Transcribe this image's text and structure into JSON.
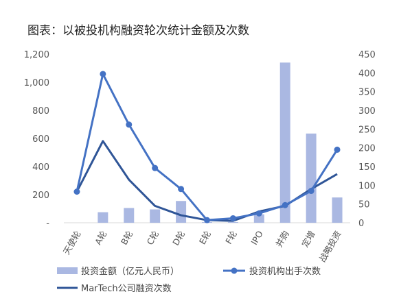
{
  "chart_data": {
    "type": "bar",
    "title": "图表：以被投机构融资轮次统计金额及次数",
    "categories": [
      "天使轮",
      "A轮",
      "B轮",
      "C轮",
      "D轮",
      "E轮",
      "F轮",
      "IPO",
      "并购",
      "定增",
      "战略投资"
    ],
    "y_left": {
      "ticks": [
        "-",
        "200",
        "400",
        "600",
        "800",
        "1,000",
        "1,200"
      ],
      "ylim": [
        0,
        1200
      ]
    },
    "y_right": {
      "ticks": [
        "0",
        "50",
        "100",
        "150",
        "200",
        "250",
        "300",
        "350",
        "400",
        "450"
      ],
      "ylim": [
        0,
        450
      ]
    },
    "series": [
      {
        "name": "投资金额（亿元人民币）",
        "type": "bar",
        "axis": "left",
        "color": "#aab8e2",
        "values": [
          0,
          75,
          105,
          95,
          155,
          5,
          5,
          60,
          1140,
          635,
          180
        ]
      },
      {
        "name": "投资机构出手次数",
        "type": "line-marker",
        "axis": "right",
        "color": "#4472c4",
        "values": [
          83,
          397,
          262,
          146,
          90,
          7,
          12,
          25,
          47,
          85,
          195
        ]
      },
      {
        "name": "MarTech公司融资次数",
        "type": "line",
        "axis": "right",
        "color": "#2f5597",
        "values": [
          83,
          218,
          115,
          45,
          20,
          7,
          5,
          30,
          45,
          90,
          130
        ]
      }
    ],
    "legend_position": "bottom",
    "grid": false
  }
}
